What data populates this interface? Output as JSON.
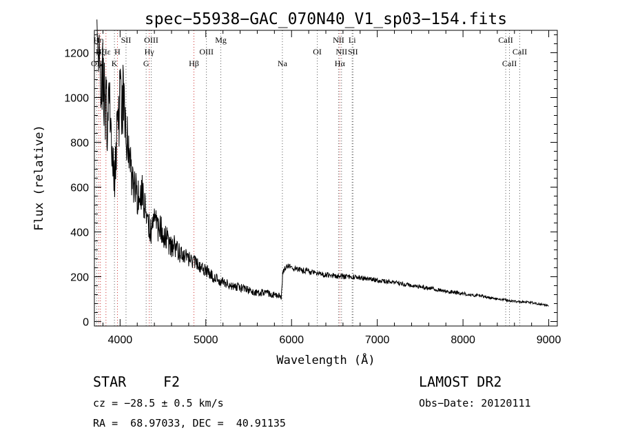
{
  "chart_data": {
    "type": "line",
    "title": "spec−55938−GAC_070N40_V1_sp03−154.fits",
    "xlabel": "Wavelength (Å)",
    "ylabel": "Flux (relative)",
    "xlim": [
      3700,
      9100
    ],
    "ylim": [
      -20,
      1300
    ],
    "xticks": [
      4000,
      5000,
      6000,
      7000,
      8000,
      9000
    ],
    "yticks": [
      0,
      200,
      400,
      600,
      800,
      1000,
      1200
    ],
    "grid": false,
    "series": [
      {
        "x": [
          3730,
          3760,
          3790,
          3820,
          3850,
          3880,
          3900,
          3920,
          3940,
          3960,
          3980,
          4000,
          4030,
          4060,
          4100,
          4150,
          4200,
          4250,
          4300,
          4350,
          4400,
          4450,
          4500,
          4550,
          4600,
          4700,
          4800,
          4900,
          5000,
          5100,
          5200,
          5300,
          5400,
          5500,
          5600,
          5700,
          5800,
          5880,
          5900,
          5950,
          6000,
          6100,
          6200,
          6300,
          6400,
          6500,
          6600,
          6700,
          6800,
          6900,
          7000,
          7200,
          7400,
          7600,
          7800,
          8000,
          8200,
          8400,
          8600,
          8800,
          9000
        ],
        "y": [
          1180,
          1150,
          1100,
          1000,
          900,
          960,
          870,
          680,
          640,
          800,
          900,
          980,
          1000,
          880,
          760,
          640,
          560,
          600,
          500,
          400,
          460,
          420,
          390,
          360,
          340,
          310,
          280,
          250,
          230,
          195,
          175,
          160,
          150,
          140,
          130,
          125,
          120,
          115,
          220,
          250,
          240,
          230,
          225,
          215,
          210,
          205,
          200,
          200,
          195,
          190,
          185,
          175,
          160,
          150,
          135,
          125,
          115,
          100,
          90,
          85,
          70
        ]
      }
    ],
    "line_markers": [
      {
        "x": 3727,
        "label": "OII",
        "row": 3
      },
      {
        "x": 3750,
        "label": "Hη",
        "row": 1
      },
      {
        "x": 3770,
        "label": "Hζ",
        "row": 2
      },
      {
        "x": 3835,
        "label": "Hε",
        "row": 2
      },
      {
        "x": 3934,
        "label": "K",
        "row": 3
      },
      {
        "x": 3969,
        "label": "H",
        "row": 2
      },
      {
        "x": 4069,
        "label": "SII",
        "row": 1
      },
      {
        "x": 4304,
        "label": "G",
        "row": 3
      },
      {
        "x": 4340,
        "label": "Hγ",
        "row": 2
      },
      {
        "x": 4363,
        "label": "OIII",
        "row": 1
      },
      {
        "x": 4861,
        "label": "Hβ",
        "row": 3
      },
      {
        "x": 5007,
        "label": "OIII",
        "row": 2
      },
      {
        "x": 5175,
        "label": "Mg",
        "row": 1
      },
      {
        "x": 5893,
        "label": "Na",
        "row": 3
      },
      {
        "x": 6300,
        "label": "OI",
        "row": 2
      },
      {
        "x": 6548,
        "label": "NII",
        "row": 1
      },
      {
        "x": 6563,
        "label": "Hα",
        "row": 3
      },
      {
        "x": 6583,
        "label": "NII",
        "row": 2
      },
      {
        "x": 6707,
        "label": "Li",
        "row": 1
      },
      {
        "x": 6716,
        "label": "SII",
        "row": 2
      },
      {
        "x": 8498,
        "label": "CaII",
        "row": 1
      },
      {
        "x": 8542,
        "label": "CaII",
        "row": 3
      },
      {
        "x": 8662,
        "label": "CaII",
        "row": 2
      }
    ]
  },
  "info": {
    "class": "STAR",
    "subclass": "F2",
    "survey": "LAMOST DR2",
    "cz": "cz = −28.5 ± 0.5 km/s",
    "obs_date": "Obs−Date: 20120111",
    "radec": "RA =  68.97033, DEC =  40.91135"
  }
}
